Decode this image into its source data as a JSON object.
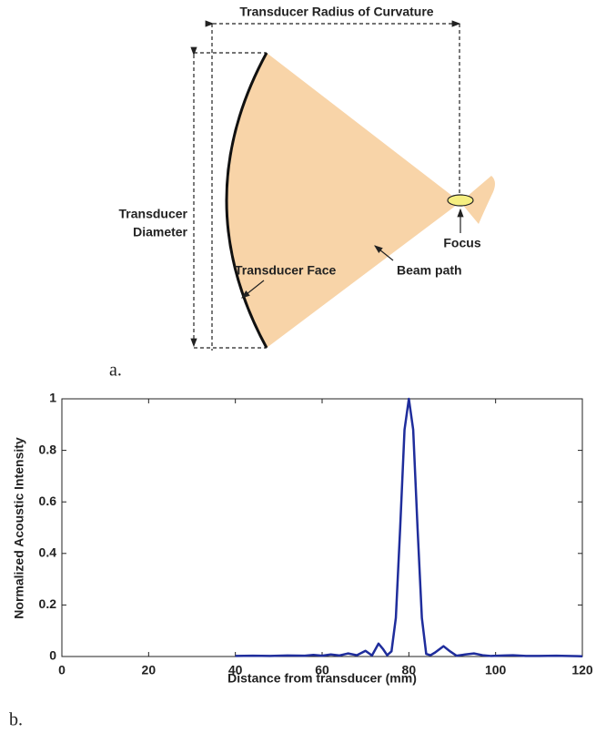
{
  "diagram": {
    "radius_label": "Transducer Radius of Curvature",
    "diameter_label": [
      "Transducer",
      "Diameter"
    ],
    "face_label": "Transducer Face",
    "beam_label": "Beam path",
    "focus_label": "Focus",
    "panel_label": "a."
  },
  "chart_data": {
    "type": "line",
    "panel_label": "b.",
    "xlabel": "Distance from transducer (mm)",
    "ylabel": "Normalized Acoustic Intensity",
    "xlim": [
      0,
      120
    ],
    "xticks": [
      0,
      20,
      40,
      60,
      80,
      100,
      120
    ],
    "ylim": [
      0,
      1
    ],
    "yticks": [
      0,
      0.2,
      0.4,
      0.6,
      0.8,
      1
    ],
    "x": [
      40,
      44,
      48,
      52,
      56,
      58,
      60,
      62,
      64,
      66,
      68,
      70,
      71.5,
      73,
      74,
      75,
      76,
      77,
      78,
      79,
      80,
      81,
      82,
      83,
      84,
      85,
      86,
      88,
      89.5,
      91,
      93,
      95,
      97,
      99,
      102,
      104,
      107,
      110,
      114,
      120
    ],
    "series": [
      {
        "color": "#1f2d9c",
        "values": [
          0.002,
          0.003,
          0.002,
          0.004,
          0.003,
          0.006,
          0.003,
          0.008,
          0.004,
          0.012,
          0.005,
          0.022,
          0.004,
          0.05,
          0.03,
          0.005,
          0.02,
          0.15,
          0.5,
          0.88,
          1,
          0.88,
          0.5,
          0.15,
          0.01,
          0.005,
          0.015,
          0.04,
          0.02,
          0.003,
          0.008,
          0.012,
          0.005,
          0.002,
          0.004,
          0.005,
          0.002,
          0.002,
          0.003,
          0.001
        ]
      }
    ]
  }
}
